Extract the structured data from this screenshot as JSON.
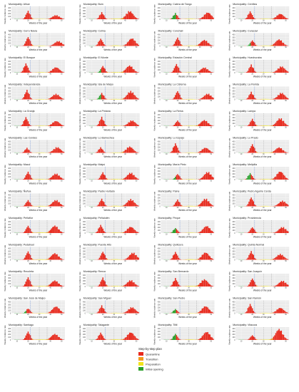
{
  "figure": {
    "panel_title_prefix": "Municipality: ",
    "xlabel": "Weeks of the year",
    "ylabel": "Weekly incidence rate",
    "y_tick_labels": [
      "0",
      "100",
      "200",
      "300",
      "400"
    ],
    "x_tick_labels": [
      "10",
      "20",
      "30",
      "40",
      "50"
    ]
  },
  "legend": {
    "title": "Step-by-step plan",
    "entries": [
      {
        "label": "Quarantine",
        "color": "#e8291c"
      },
      {
        "label": "Transition",
        "color": "#f39a1e"
      },
      {
        "label": "Preparation",
        "color": "#f2e41a"
      },
      {
        "label": "Initial opening",
        "color": "#2aa02a"
      }
    ]
  },
  "colors": {
    "panel_bg": "#ebebeb",
    "grid": "#ffffff",
    "quarantine": "#e8291c",
    "transition": "#f39a1e",
    "preparation": "#f2e41a",
    "opening": "#2aa02a",
    "vline_a": "#3b6fd1",
    "vline_b": "#888888"
  },
  "chart_data": {
    "type": "bar",
    "x_unit": "week of the year",
    "xlim": [
      5,
      53
    ],
    "ylim": [
      0,
      450
    ],
    "y_ticks": [
      0,
      100,
      200,
      300,
      400
    ],
    "x_ticks": [
      10,
      20,
      30,
      40,
      50
    ],
    "phases": [
      "Quarantine",
      "Transition",
      "Preparation",
      "Initial opening"
    ],
    "municipalities": [
      {
        "name": "Alhue",
        "peak1": 300,
        "peak2": 150,
        "open": 0
      },
      {
        "name": "Buin",
        "peak1": 250,
        "peak2": 300,
        "open": 0
      },
      {
        "name": "Calera de Tango",
        "peak1": 220,
        "peak2": 250,
        "open": 1
      },
      {
        "name": "Cerrillos",
        "peak1": 280,
        "peak2": 200,
        "open": 0
      },
      {
        "name": "Cerro Navia",
        "peak1": 320,
        "peak2": 180,
        "open": 0
      },
      {
        "name": "Colina",
        "peak1": 260,
        "peak2": 280,
        "open": 0
      },
      {
        "name": "Conchalí",
        "peak1": 300,
        "peak2": 220,
        "open": 0
      },
      {
        "name": "Curacaví",
        "peak1": 200,
        "peak2": 240,
        "open": 1
      },
      {
        "name": "El Bosque",
        "peak1": 330,
        "peak2": 200,
        "open": 0
      },
      {
        "name": "El Monte",
        "peak1": 240,
        "peak2": 260,
        "open": 1
      },
      {
        "name": "Estación Central",
        "peak1": 310,
        "peak2": 190,
        "open": 0
      },
      {
        "name": "Huechuraba",
        "peak1": 290,
        "peak2": 230,
        "open": 0
      },
      {
        "name": "Independencia",
        "peak1": 340,
        "peak2": 200,
        "open": 0
      },
      {
        "name": "Isla de Maipo",
        "peak1": 230,
        "peak2": 300,
        "open": 1
      },
      {
        "name": "La Cisterna",
        "peak1": 300,
        "peak2": 210,
        "open": 0
      },
      {
        "name": "La Florida",
        "peak1": 270,
        "peak2": 240,
        "open": 0
      },
      {
        "name": "La Granja",
        "peak1": 320,
        "peak2": 190,
        "open": 0
      },
      {
        "name": "La Pintana",
        "peak1": 330,
        "peak2": 210,
        "open": 0
      },
      {
        "name": "La Reina",
        "peak1": 200,
        "peak2": 220,
        "open": 0
      },
      {
        "name": "Lampa",
        "peak1": 260,
        "peak2": 290,
        "open": 0
      },
      {
        "name": "Las Condes",
        "peak1": 180,
        "peak2": 210,
        "open": 0
      },
      {
        "name": "Lo Barnechea",
        "peak1": 200,
        "peak2": 230,
        "open": 0
      },
      {
        "name": "Lo Espejo",
        "peak1": 340,
        "peak2": 190,
        "open": 0
      },
      {
        "name": "Lo Prado",
        "peak1": 310,
        "peak2": 200,
        "open": 0
      },
      {
        "name": "Macul",
        "peak1": 280,
        "peak2": 220,
        "open": 0
      },
      {
        "name": "Maipú",
        "peak1": 260,
        "peak2": 250,
        "open": 0
      },
      {
        "name": "María Pinto",
        "peak1": 200,
        "peak2": 280,
        "open": 1
      },
      {
        "name": "Melipilla",
        "peak1": 230,
        "peak2": 300,
        "open": 1
      },
      {
        "name": "Ñuñoa",
        "peak1": 220,
        "peak2": 230,
        "open": 0
      },
      {
        "name": "Padre Hurtado",
        "peak1": 270,
        "peak2": 260,
        "open": 0
      },
      {
        "name": "Paine",
        "peak1": 240,
        "peak2": 280,
        "open": 0
      },
      {
        "name": "Pedro Aguirre Cerda",
        "peak1": 320,
        "peak2": 200,
        "open": 0
      },
      {
        "name": "Peñaflor",
        "peak1": 260,
        "peak2": 270,
        "open": 0
      },
      {
        "name": "Peñalolén",
        "peak1": 290,
        "peak2": 230,
        "open": 0
      },
      {
        "name": "Pirque",
        "peak1": 180,
        "peak2": 260,
        "open": 1
      },
      {
        "name": "Providencia",
        "peak1": 210,
        "peak2": 220,
        "open": 0
      },
      {
        "name": "Pudahuel",
        "peak1": 300,
        "peak2": 240,
        "open": 0
      },
      {
        "name": "Puente Alto",
        "peak1": 290,
        "peak2": 260,
        "open": 0
      },
      {
        "name": "Quilicura",
        "peak1": 280,
        "peak2": 270,
        "open": 0
      },
      {
        "name": "Quinta Normal",
        "peak1": 310,
        "peak2": 210,
        "open": 0
      },
      {
        "name": "Recoleta",
        "peak1": 330,
        "peak2": 220,
        "open": 0
      },
      {
        "name": "Renca",
        "peak1": 320,
        "peak2": 230,
        "open": 0
      },
      {
        "name": "San Bernardo",
        "peak1": 300,
        "peak2": 260,
        "open": 0
      },
      {
        "name": "San Joaquín",
        "peak1": 290,
        "peak2": 210,
        "open": 0
      },
      {
        "name": "San José de Maipo",
        "peak1": 170,
        "peak2": 250,
        "open": 1
      },
      {
        "name": "San Miguel",
        "peak1": 280,
        "peak2": 220,
        "open": 0
      },
      {
        "name": "San Pedro",
        "peak1": 150,
        "peak2": 260,
        "open": 1
      },
      {
        "name": "San Ramón",
        "peak1": 330,
        "peak2": 200,
        "open": 0
      },
      {
        "name": "Santiago",
        "peak1": 300,
        "peak2": 220,
        "open": 0
      },
      {
        "name": "Talagante",
        "peak1": 260,
        "peak2": 280,
        "open": 0
      },
      {
        "name": "Tiltil",
        "peak1": 220,
        "peak2": 300,
        "open": 1
      },
      {
        "name": "Vitacura",
        "peak1": 170,
        "peak2": 400,
        "open": 0
      }
    ]
  }
}
